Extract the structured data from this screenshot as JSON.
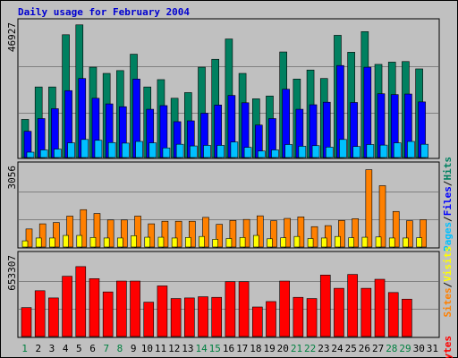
{
  "title": "Daily usage for February 2004",
  "colors": {
    "hits": "#008060",
    "files": "#0000ff",
    "pages": "#00c0ff",
    "visits": "#ffff00",
    "sites": "#ff8000",
    "kbytes": "#ff0000",
    "weekend_label": "#008040",
    "weekday_label": "#000000"
  },
  "chart_data": [
    {
      "type": "bar",
      "panel": "top",
      "ymax_label": "46927",
      "ymax": 46927,
      "right_labels": [
        "Pages",
        "Files",
        "Hits"
      ],
      "x": [
        1,
        2,
        3,
        4,
        5,
        6,
        7,
        8,
        9,
        10,
        11,
        12,
        13,
        14,
        15,
        16,
        17,
        18,
        19,
        20,
        21,
        22,
        23,
        24,
        25,
        26,
        27,
        28,
        29,
        30,
        31
      ],
      "series": [
        {
          "name": "Hits",
          "values": [
            13500,
            25000,
            25000,
            43500,
            47000,
            32000,
            29800,
            30800,
            36600,
            25000,
            27600,
            21000,
            23000,
            32000,
            34800,
            42000,
            29800,
            20800,
            21800,
            37400,
            27800,
            31000,
            28000,
            43300,
            37300,
            44600,
            33000,
            33800,
            34000,
            31400,
            0
          ]
        },
        {
          "name": "Files",
          "values": [
            9300,
            13800,
            17300,
            23700,
            28000,
            21000,
            19000,
            18000,
            27800,
            17100,
            18400,
            12700,
            13000,
            15700,
            18600,
            22000,
            19400,
            11500,
            13800,
            24200,
            17100,
            18700,
            19600,
            32600,
            19500,
            32000,
            22600,
            22300,
            22500,
            19700,
            0
          ]
        },
        {
          "name": "Pages",
          "values": [
            1900,
            2700,
            3000,
            5200,
            6400,
            6100,
            5300,
            5100,
            5700,
            5200,
            3400,
            4700,
            4100,
            4300,
            4300,
            5500,
            3600,
            2300,
            2700,
            4600,
            4000,
            4200,
            3700,
            6400,
            3900,
            4600,
            4400,
            5200,
            5700,
            4700,
            0
          ]
        }
      ]
    },
    {
      "type": "bar",
      "panel": "middle",
      "ymax_label": "3056",
      "ymax": 3056,
      "right_labels": [
        "Sites",
        "Visits"
      ],
      "x": [
        1,
        2,
        3,
        4,
        5,
        6,
        7,
        8,
        9,
        10,
        11,
        12,
        13,
        14,
        15,
        16,
        17,
        18,
        19,
        20,
        21,
        22,
        23,
        24,
        25,
        26,
        27,
        28,
        29,
        30,
        31
      ],
      "series": [
        {
          "name": "Sites",
          "values": [
            700,
            900,
            950,
            1200,
            1450,
            1300,
            1050,
            1050,
            1200,
            900,
            1000,
            1000,
            1000,
            1150,
            880,
            1030,
            1070,
            1210,
            1020,
            1110,
            1170,
            790,
            830,
            1030,
            1100,
            3000,
            2380,
            1380,
            1020,
            1060,
            0
          ]
        },
        {
          "name": "Visits",
          "values": [
            240,
            350,
            350,
            450,
            450,
            370,
            350,
            350,
            440,
            380,
            380,
            350,
            370,
            410,
            300,
            330,
            370,
            450,
            320,
            360,
            410,
            330,
            350,
            410,
            360,
            380,
            390,
            350,
            350,
            360,
            0
          ]
        }
      ]
    },
    {
      "type": "bar",
      "panel": "bottom",
      "ymax_label": "653307",
      "ymax": 653307,
      "right_labels": [
        "KBytes"
      ],
      "x": [
        1,
        2,
        3,
        4,
        5,
        6,
        7,
        8,
        9,
        10,
        11,
        12,
        13,
        14,
        15,
        16,
        17,
        18,
        19,
        20,
        21,
        22,
        23,
        24,
        25,
        26,
        27,
        28,
        29,
        30,
        31
      ],
      "series": [
        {
          "name": "KBytes",
          "values": [
            240000,
            380000,
            320000,
            500000,
            580000,
            480000,
            370000,
            460000,
            460000,
            285000,
            420000,
            315000,
            320000,
            330000,
            325000,
            455000,
            455000,
            245000,
            290000,
            460000,
            325000,
            315000,
            510000,
            400000,
            515000,
            400000,
            475000,
            365000,
            310000,
            0,
            0
          ]
        }
      ]
    }
  ],
  "x_labels": [
    {
      "label": "1",
      "weekend": true
    },
    {
      "label": "2",
      "weekend": false
    },
    {
      "label": "3",
      "weekend": false
    },
    {
      "label": "4",
      "weekend": false
    },
    {
      "label": "5",
      "weekend": false
    },
    {
      "label": "6",
      "weekend": false
    },
    {
      "label": "7",
      "weekend": true
    },
    {
      "label": "8",
      "weekend": true
    },
    {
      "label": "9",
      "weekend": false
    },
    {
      "label": "10",
      "weekend": false
    },
    {
      "label": "11",
      "weekend": false
    },
    {
      "label": "12",
      "weekend": false
    },
    {
      "label": "13",
      "weekend": false
    },
    {
      "label": "14",
      "weekend": true
    },
    {
      "label": "15",
      "weekend": true
    },
    {
      "label": "16",
      "weekend": false
    },
    {
      "label": "17",
      "weekend": false
    },
    {
      "label": "18",
      "weekend": false
    },
    {
      "label": "19",
      "weekend": false
    },
    {
      "label": "20",
      "weekend": false
    },
    {
      "label": "21",
      "weekend": true
    },
    {
      "label": "22",
      "weekend": true
    },
    {
      "label": "23",
      "weekend": false
    },
    {
      "label": "24",
      "weekend": false
    },
    {
      "label": "25",
      "weekend": false
    },
    {
      "label": "26",
      "weekend": false
    },
    {
      "label": "27",
      "weekend": false
    },
    {
      "label": "28",
      "weekend": true
    },
    {
      "label": "29",
      "weekend": true
    },
    {
      "label": "30",
      "weekend": false
    },
    {
      "label": "31",
      "weekend": false
    }
  ]
}
